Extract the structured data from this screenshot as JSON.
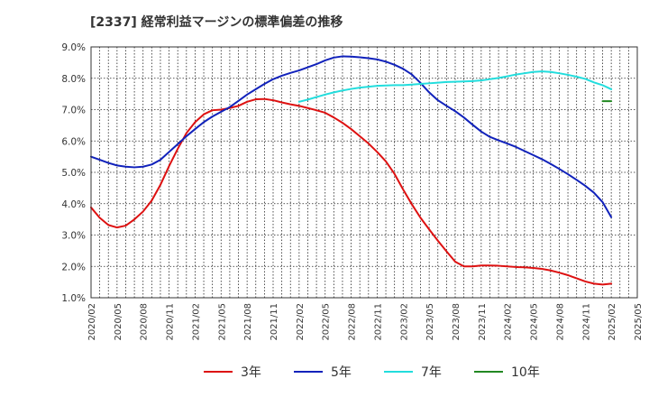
{
  "chart_data": {
    "type": "line",
    "title": "[2337]  経常利益マージンの標準偏差の推移",
    "ylim": [
      1.0,
      9.0
    ],
    "y_ticks": [
      "1.0%",
      "2.0%",
      "3.0%",
      "4.0%",
      "5.0%",
      "6.0%",
      "7.0%",
      "8.0%",
      "9.0%"
    ],
    "y_tick_values": [
      1,
      2,
      3,
      4,
      5,
      6,
      7,
      8,
      9
    ],
    "x_ticks": [
      "2020/02",
      "2020/05",
      "2020/08",
      "2020/11",
      "2021/02",
      "2021/05",
      "2021/08",
      "2021/11",
      "2022/02",
      "2022/05",
      "2022/08",
      "2022/11",
      "2023/02",
      "2023/05",
      "2023/08",
      "2023/11",
      "2024/02",
      "2024/05",
      "2024/08",
      "2024/11",
      "2025/02",
      "2025/05"
    ],
    "grid": true,
    "legend_position": "bottom",
    "series": [
      {
        "name": "3年",
        "color": "#dd1111",
        "points": [
          [
            "2020/02",
            3.88
          ],
          [
            "2020/03",
            3.55
          ],
          [
            "2020/04",
            3.32
          ],
          [
            "2020/05",
            3.24
          ],
          [
            "2020/06",
            3.3
          ],
          [
            "2020/07",
            3.5
          ],
          [
            "2020/08",
            3.75
          ],
          [
            "2020/09",
            4.1
          ],
          [
            "2020/10",
            4.6
          ],
          [
            "2020/11",
            5.2
          ],
          [
            "2020/12",
            5.75
          ],
          [
            "2021/01",
            6.25
          ],
          [
            "2021/02",
            6.6
          ],
          [
            "2021/03",
            6.85
          ],
          [
            "2021/04",
            6.98
          ],
          [
            "2021/05",
            7.0
          ],
          [
            "2021/06",
            7.05
          ],
          [
            "2021/07",
            7.12
          ],
          [
            "2021/08",
            7.25
          ],
          [
            "2021/09",
            7.33
          ],
          [
            "2021/10",
            7.34
          ],
          [
            "2021/11",
            7.3
          ],
          [
            "2021/12",
            7.23
          ],
          [
            "2022/01",
            7.17
          ],
          [
            "2022/02",
            7.12
          ],
          [
            "2022/03",
            7.05
          ],
          [
            "2022/04",
            6.98
          ],
          [
            "2022/05",
            6.9
          ],
          [
            "2022/06",
            6.75
          ],
          [
            "2022/07",
            6.58
          ],
          [
            "2022/08",
            6.38
          ],
          [
            "2022/09",
            6.15
          ],
          [
            "2022/10",
            5.92
          ],
          [
            "2022/11",
            5.65
          ],
          [
            "2022/12",
            5.35
          ],
          [
            "2023/01",
            4.95
          ],
          [
            "2023/02",
            4.45
          ],
          [
            "2023/03",
            3.98
          ],
          [
            "2023/04",
            3.55
          ],
          [
            "2023/05",
            3.18
          ],
          [
            "2023/06",
            2.82
          ],
          [
            "2023/07",
            2.48
          ],
          [
            "2023/08",
            2.15
          ],
          [
            "2023/09",
            2.0
          ],
          [
            "2023/10",
            2.0
          ],
          [
            "2023/11",
            2.03
          ],
          [
            "2023/12",
            2.03
          ],
          [
            "2024/01",
            2.02
          ],
          [
            "2024/02",
            2.0
          ],
          [
            "2024/03",
            1.98
          ],
          [
            "2024/04",
            1.97
          ],
          [
            "2024/05",
            1.95
          ],
          [
            "2024/06",
            1.92
          ],
          [
            "2024/07",
            1.87
          ],
          [
            "2024/08",
            1.8
          ],
          [
            "2024/09",
            1.72
          ],
          [
            "2024/10",
            1.62
          ],
          [
            "2024/11",
            1.52
          ],
          [
            "2024/12",
            1.45
          ],
          [
            "2025/01",
            1.42
          ],
          [
            "2025/02",
            1.45
          ]
        ]
      },
      {
        "name": "5年",
        "color": "#1122bb",
        "points": [
          [
            "2020/02",
            5.5
          ],
          [
            "2020/03",
            5.4
          ],
          [
            "2020/04",
            5.3
          ],
          [
            "2020/05",
            5.22
          ],
          [
            "2020/06",
            5.18
          ],
          [
            "2020/07",
            5.16
          ],
          [
            "2020/08",
            5.18
          ],
          [
            "2020/09",
            5.25
          ],
          [
            "2020/10",
            5.4
          ],
          [
            "2020/11",
            5.65
          ],
          [
            "2020/12",
            5.9
          ],
          [
            "2021/01",
            6.15
          ],
          [
            "2021/02",
            6.38
          ],
          [
            "2021/03",
            6.6
          ],
          [
            "2021/04",
            6.78
          ],
          [
            "2021/05",
            6.93
          ],
          [
            "2021/06",
            7.08
          ],
          [
            "2021/07",
            7.28
          ],
          [
            "2021/08",
            7.48
          ],
          [
            "2021/09",
            7.65
          ],
          [
            "2021/10",
            7.82
          ],
          [
            "2021/11",
            7.97
          ],
          [
            "2021/12",
            8.08
          ],
          [
            "2022/01",
            8.17
          ],
          [
            "2022/02",
            8.25
          ],
          [
            "2022/03",
            8.35
          ],
          [
            "2022/04",
            8.45
          ],
          [
            "2022/05",
            8.57
          ],
          [
            "2022/06",
            8.66
          ],
          [
            "2022/07",
            8.7
          ],
          [
            "2022/08",
            8.69
          ],
          [
            "2022/09",
            8.67
          ],
          [
            "2022/10",
            8.64
          ],
          [
            "2022/11",
            8.6
          ],
          [
            "2022/12",
            8.53
          ],
          [
            "2023/01",
            8.43
          ],
          [
            "2023/02",
            8.3
          ],
          [
            "2023/03",
            8.12
          ],
          [
            "2023/04",
            7.85
          ],
          [
            "2023/05",
            7.55
          ],
          [
            "2023/06",
            7.3
          ],
          [
            "2023/07",
            7.12
          ],
          [
            "2023/08",
            6.95
          ],
          [
            "2023/09",
            6.75
          ],
          [
            "2023/10",
            6.52
          ],
          [
            "2023/11",
            6.3
          ],
          [
            "2023/12",
            6.13
          ],
          [
            "2024/01",
            6.02
          ],
          [
            "2024/02",
            5.92
          ],
          [
            "2024/03",
            5.81
          ],
          [
            "2024/04",
            5.68
          ],
          [
            "2024/05",
            5.55
          ],
          [
            "2024/06",
            5.42
          ],
          [
            "2024/07",
            5.27
          ],
          [
            "2024/08",
            5.11
          ],
          [
            "2024/09",
            4.94
          ],
          [
            "2024/10",
            4.76
          ],
          [
            "2024/11",
            4.57
          ],
          [
            "2024/12",
            4.35
          ],
          [
            "2025/01",
            4.05
          ],
          [
            "2025/02",
            3.57
          ]
        ]
      },
      {
        "name": "7年",
        "color": "#22dddd",
        "points": [
          [
            "2022/02",
            7.25
          ],
          [
            "2022/03",
            7.32
          ],
          [
            "2022/04",
            7.4
          ],
          [
            "2022/05",
            7.48
          ],
          [
            "2022/06",
            7.55
          ],
          [
            "2022/07",
            7.61
          ],
          [
            "2022/08",
            7.66
          ],
          [
            "2022/09",
            7.7
          ],
          [
            "2022/10",
            7.73
          ],
          [
            "2022/11",
            7.76
          ],
          [
            "2022/12",
            7.77
          ],
          [
            "2023/01",
            7.78
          ],
          [
            "2023/02",
            7.78
          ],
          [
            "2023/03",
            7.8
          ],
          [
            "2023/04",
            7.82
          ],
          [
            "2023/05",
            7.84
          ],
          [
            "2023/06",
            7.86
          ],
          [
            "2023/07",
            7.88
          ],
          [
            "2023/08",
            7.89
          ],
          [
            "2023/09",
            7.9
          ],
          [
            "2023/10",
            7.91
          ],
          [
            "2023/11",
            7.93
          ],
          [
            "2023/12",
            7.97
          ],
          [
            "2024/01",
            8.01
          ],
          [
            "2024/02",
            8.06
          ],
          [
            "2024/03",
            8.12
          ],
          [
            "2024/04",
            8.16
          ],
          [
            "2024/05",
            8.2
          ],
          [
            "2024/06",
            8.22
          ],
          [
            "2024/07",
            8.2
          ],
          [
            "2024/08",
            8.16
          ],
          [
            "2024/09",
            8.11
          ],
          [
            "2024/10",
            8.05
          ],
          [
            "2024/11",
            7.98
          ],
          [
            "2024/12",
            7.87
          ],
          [
            "2025/01",
            7.78
          ],
          [
            "2025/02",
            7.65
          ]
        ]
      },
      {
        "name": "10年",
        "color": "#228822",
        "points": [
          [
            "2025/01",
            7.27
          ],
          [
            "2025/02",
            7.27
          ]
        ]
      }
    ]
  }
}
